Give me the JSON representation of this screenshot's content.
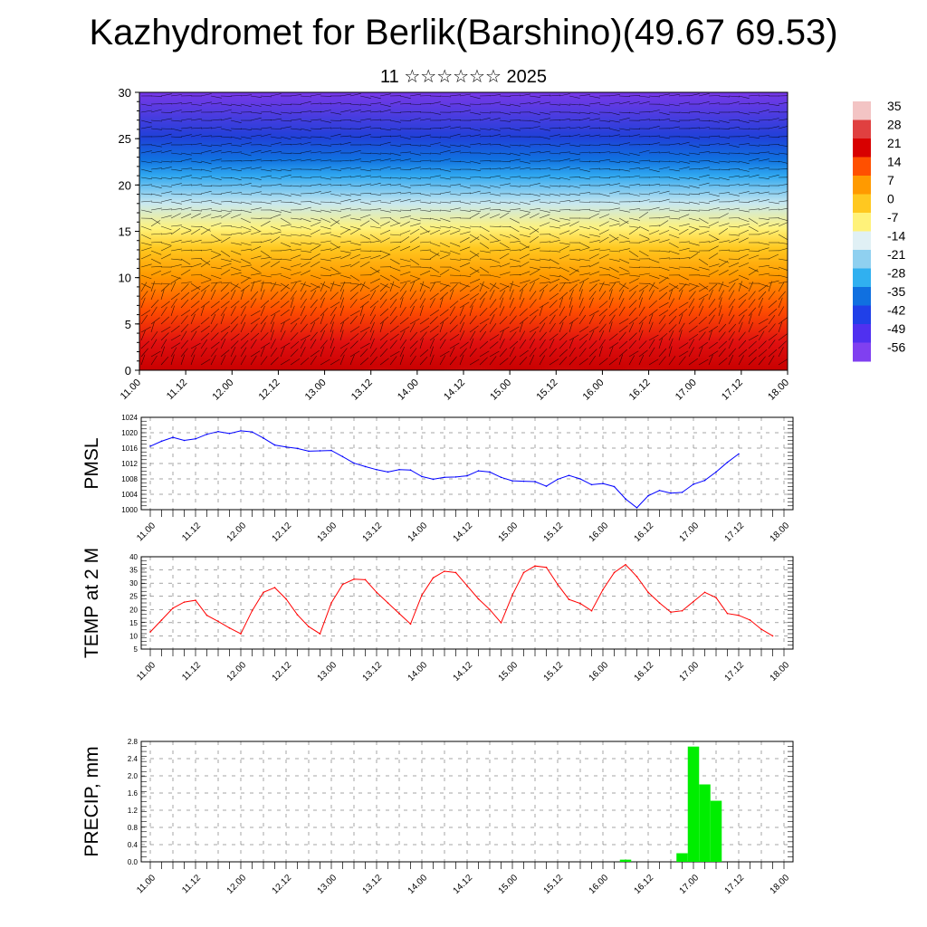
{
  "header": {
    "title": "Kazhydromet for Berlik(Barshino)(49.67 69.53)",
    "subtitle": "11 ☆☆☆☆☆☆ 2025"
  },
  "time_labels": [
    "11.00",
    "11.12",
    "12.00",
    "12.12",
    "13.00",
    "13.12",
    "14.00",
    "14.12",
    "15.00",
    "15.12",
    "16.00",
    "16.12",
    "17.00",
    "17.12",
    "18.00"
  ],
  "colors": {
    "pmsl_line": "#0000ff",
    "temp_line": "#ff0000",
    "precip_bar": "#00ee00"
  },
  "chart_data": [
    {
      "type": "heatmap",
      "title": "",
      "description_of_axes": "vertical cross-section",
      "ylim": [
        0,
        30
      ],
      "yticks": [
        0,
        5,
        10,
        15,
        20,
        25,
        30
      ],
      "x_categories": [
        "11.00",
        "11.12",
        "12.00",
        "12.12",
        "13.00",
        "13.12",
        "14.00",
        "14.12",
        "15.00",
        "15.12",
        "16.00",
        "16.12",
        "17.00",
        "17.12",
        "18.00"
      ],
      "colorbar_labels": [
        35,
        28,
        21,
        14,
        7,
        0,
        -7,
        -14,
        -21,
        -28,
        -35,
        -42,
        -49,
        -56
      ],
      "colorbar_colors": [
        "#f3c4c4",
        "#e04040",
        "#d80000",
        "#ff5000",
        "#ff9a00",
        "#ffc820",
        "#fff27a",
        "#e0f0f5",
        "#8fd0f0",
        "#30b0f0",
        "#1070e0",
        "#2040e8",
        "#5030f0",
        "#8040f0"
      ],
      "wind_barbs": true
    },
    {
      "type": "line",
      "ylabel": "PMSL",
      "ylim": [
        1000,
        1024
      ],
      "yticks": [
        1000,
        1004,
        1008,
        1012,
        1016,
        1020,
        1024
      ],
      "x_step_hours": 3,
      "values": [
        1016.5,
        1017.8,
        1018.8,
        1018.0,
        1018.4,
        1019.6,
        1020.3,
        1019.8,
        1020.5,
        1020.2,
        1018.6,
        1016.8,
        1016.3,
        1015.9,
        1015.2,
        1015.3,
        1015.4,
        1013.8,
        1012.1,
        1011.2,
        1010.4,
        1009.8,
        1010.4,
        1010.3,
        1008.6,
        1007.9,
        1008.4,
        1008.5,
        1008.8,
        1010.1,
        1009.8,
        1008.4,
        1007.5,
        1007.4,
        1007.3,
        1006.1,
        1007.9,
        1008.9,
        1008.0,
        1006.5,
        1006.8,
        1006.0,
        1002.8,
        1000.5,
        1003.6,
        1005.0,
        1004.3,
        1004.5,
        1006.6,
        1007.6,
        1009.8,
        1012.3,
        1014.5
      ]
    },
    {
      "type": "line",
      "ylabel": "TEMP at 2 M",
      "ylim": [
        5,
        40
      ],
      "yticks": [
        5,
        10,
        15,
        20,
        25,
        30,
        35,
        40
      ],
      "x_step_hours": 3,
      "values": [
        11.5,
        16,
        20.5,
        22.8,
        23.5,
        17.8,
        15.5,
        13,
        10.8,
        19.5,
        26.5,
        28.3,
        24,
        18,
        13.5,
        10.8,
        22.5,
        29.5,
        31.5,
        31.3,
        26.5,
        22.5,
        18.5,
        14.5,
        25.5,
        32,
        34.5,
        34,
        29,
        24,
        20,
        15,
        25.5,
        34,
        36.5,
        36,
        29.5,
        23.8,
        22.3,
        19.5,
        27.5,
        34,
        37,
        32.5,
        26.5,
        22.5,
        19,
        19.5,
        23,
        26.5,
        24.5,
        18.5,
        17.8,
        16,
        12.5,
        10
      ]
    },
    {
      "type": "bar",
      "ylabel": "PRECIP, mm",
      "ylim": [
        0,
        2.8
      ],
      "yticks": [
        0.0,
        0.4,
        0.8,
        1.2,
        1.6,
        2.0,
        2.4,
        2.8
      ],
      "x_step_hours": 3,
      "values": [
        0,
        0,
        0,
        0,
        0,
        0,
        0,
        0,
        0,
        0,
        0,
        0,
        0,
        0,
        0,
        0,
        0,
        0,
        0,
        0,
        0,
        0,
        0,
        0,
        0,
        0,
        0,
        0,
        0,
        0,
        0,
        0,
        0,
        0,
        0,
        0,
        0,
        0,
        0,
        0,
        0,
        0,
        0.05,
        0,
        0,
        0,
        0,
        0.2,
        2.68,
        1.8,
        1.42,
        0,
        0,
        0,
        0,
        0
      ]
    }
  ]
}
